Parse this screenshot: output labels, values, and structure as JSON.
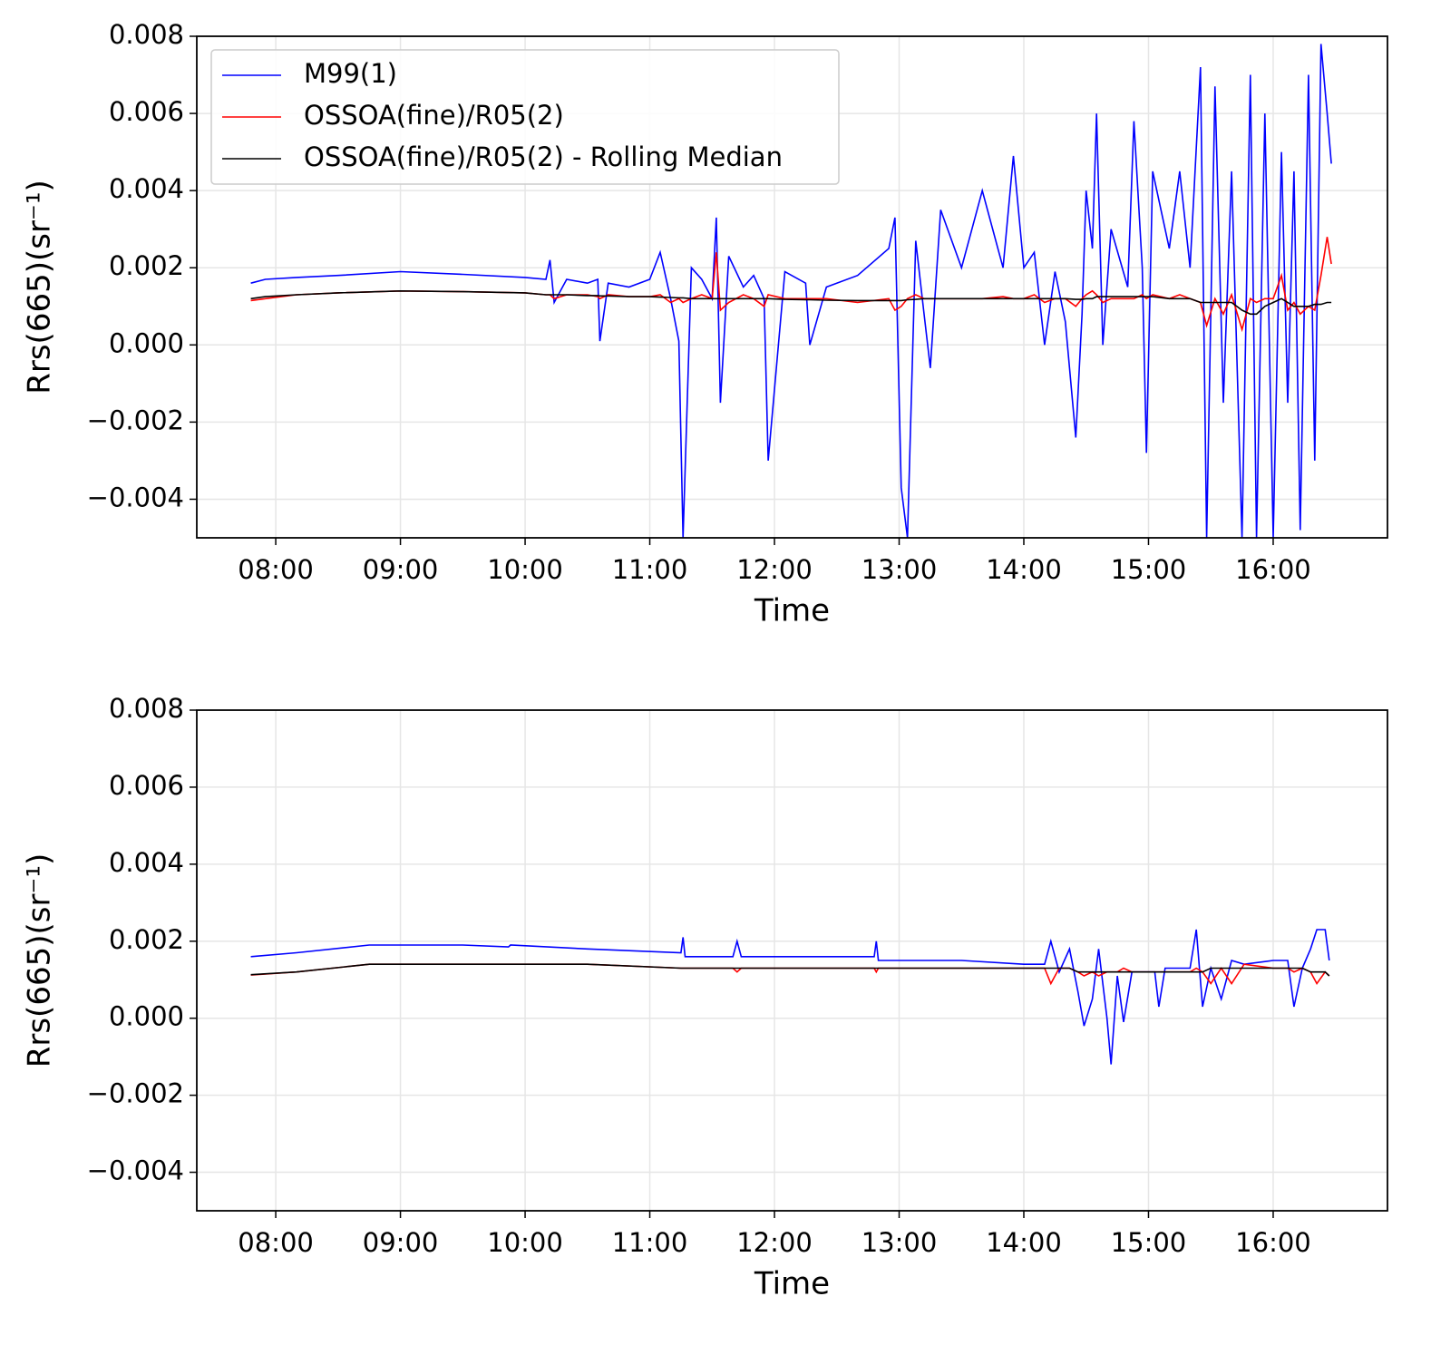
{
  "chart_data": [
    {
      "type": "line",
      "x_label": "Time",
      "y_label": "Rrs(665)(sr⁻¹)",
      "legend": "upper left",
      "grid": true,
      "xlim": [
        "07:22",
        "16:55"
      ],
      "xticks": [
        "08:00",
        "09:00",
        "10:00",
        "11:00",
        "12:00",
        "13:00",
        "14:00",
        "15:00",
        "16:00"
      ],
      "ylim": [
        -0.005,
        0.008
      ],
      "yticks": [
        {
          "value": -0.004,
          "label": "−0.004"
        },
        {
          "value": -0.002,
          "label": "−0.002"
        },
        {
          "value": 0,
          "label": "0.000"
        },
        0.002,
        0.004,
        0.006,
        0.008
      ],
      "x": [
        "07:48",
        "07:55",
        "08:10",
        "08:30",
        "09:00",
        "09:30",
        "10:00",
        "10:10",
        "10:12",
        "10:14",
        "10:20",
        "10:30",
        "10:35",
        "10:36",
        "10:40",
        "10:50",
        "11:00",
        "11:05",
        "11:10",
        "11:14",
        "11:16",
        "11:20",
        "11:25",
        "11:30",
        "11:32",
        "11:34",
        "11:38",
        "11:45",
        "11:50",
        "11:55",
        "11:57",
        "12:05",
        "12:15",
        "12:17",
        "12:25",
        "12:40",
        "12:55",
        "12:58",
        "13:01",
        "13:04",
        "13:08",
        "13:12",
        "13:15",
        "13:20",
        "13:30",
        "13:40",
        "13:50",
        "13:55",
        "14:00",
        "14:05",
        "14:10",
        "14:15",
        "14:20",
        "14:25",
        "14:28",
        "14:30",
        "14:33",
        "14:35",
        "14:38",
        "14:42",
        "14:50",
        "14:53",
        "14:57",
        "14:59",
        "15:02",
        "15:10",
        "15:15",
        "15:20",
        "15:25",
        "15:28",
        "15:32",
        "15:36",
        "15:40",
        "15:45",
        "15:49",
        "15:52",
        "15:56",
        "16:00",
        "16:04",
        "16:07",
        "16:10",
        "16:13",
        "16:17",
        "16:20",
        "16:23",
        "16:26",
        "16:28"
      ],
      "series": [
        {
          "name": "M99(1)",
          "color": "#0000ff",
          "values": [
            0.0016,
            0.0017,
            0.00175,
            0.0018,
            0.0019,
            0.00183,
            0.00175,
            0.0017,
            0.0022,
            0.0011,
            0.0017,
            0.0016,
            0.0017,
            0.0001,
            0.0016,
            0.0015,
            0.0017,
            0.0024,
            0.0012,
            0.0001,
            -0.005,
            0.002,
            0.0017,
            0.0012,
            0.0033,
            -0.0015,
            0.0023,
            0.0015,
            0.0018,
            0.0012,
            -0.003,
            0.0019,
            0.0016,
            0.0,
            0.0015,
            0.0018,
            0.0025,
            0.0033,
            -0.0037,
            -0.005,
            0.0027,
            0.0008,
            -0.0006,
            0.0035,
            0.002,
            0.004,
            0.002,
            0.0049,
            0.002,
            0.0024,
            0.0,
            0.0019,
            0.0006,
            -0.0024,
            0.0008,
            0.004,
            0.0025,
            0.006,
            0.0,
            0.003,
            0.0015,
            0.0058,
            0.002,
            -0.0028,
            0.0045,
            0.0025,
            0.0045,
            0.002,
            0.0072,
            -0.005,
            0.0067,
            -0.0015,
            0.0045,
            -0.005,
            0.007,
            -0.005,
            0.006,
            -0.005,
            0.005,
            -0.0015,
            0.0045,
            -0.0048,
            0.007,
            -0.003,
            0.0078,
            0.006,
            0.0047
          ]
        },
        {
          "name": "OSSOA(fine)/R05(2)",
          "color": "#ff0000",
          "values": [
            0.00115,
            0.0012,
            0.0013,
            0.00135,
            0.0014,
            0.00138,
            0.00135,
            0.0013,
            0.0013,
            0.0012,
            0.0013,
            0.0013,
            0.00125,
            0.0012,
            0.0013,
            0.00125,
            0.00125,
            0.0013,
            0.0011,
            0.0012,
            0.0011,
            0.0012,
            0.0013,
            0.0012,
            0.0024,
            0.0009,
            0.0011,
            0.0013,
            0.0012,
            0.001,
            0.0013,
            0.0012,
            0.0012,
            0.0012,
            0.0012,
            0.0011,
            0.0012,
            0.0009,
            0.001,
            0.0012,
            0.0013,
            0.0012,
            0.0012,
            0.0012,
            0.0012,
            0.0012,
            0.00125,
            0.0012,
            0.0012,
            0.0013,
            0.0011,
            0.0012,
            0.0012,
            0.001,
            0.0012,
            0.0013,
            0.0014,
            0.0013,
            0.0011,
            0.0012,
            0.0012,
            0.0012,
            0.0013,
            0.0012,
            0.0013,
            0.0012,
            0.0013,
            0.0012,
            0.0011,
            0.0005,
            0.0012,
            0.0008,
            0.0013,
            0.0004,
            0.0012,
            0.0011,
            0.0012,
            0.0012,
            0.0018,
            0.0009,
            0.0011,
            0.0008,
            0.001,
            0.0009,
            0.0018,
            0.0028,
            0.0021
          ]
        },
        {
          "name": "OSSOA(fine)/R05(2) - Rolling Median",
          "color": "#000000",
          "values": [
            0.0012,
            0.00125,
            0.0013,
            0.00135,
            0.0014,
            0.00138,
            0.00135,
            0.0013,
            0.0013,
            0.0013,
            0.0013,
            0.00128,
            0.00128,
            0.00127,
            0.00127,
            0.00125,
            0.00125,
            0.00124,
            0.00123,
            0.00122,
            0.00122,
            0.0012,
            0.0012,
            0.0012,
            0.0012,
            0.0012,
            0.0012,
            0.0012,
            0.0012,
            0.0012,
            0.0012,
            0.00118,
            0.00117,
            0.00117,
            0.00116,
            0.00115,
            0.00115,
            0.00115,
            0.00115,
            0.00117,
            0.00118,
            0.0012,
            0.0012,
            0.0012,
            0.0012,
            0.0012,
            0.0012,
            0.0012,
            0.0012,
            0.0012,
            0.0012,
            0.0012,
            0.0012,
            0.00118,
            0.00118,
            0.0012,
            0.0012,
            0.00125,
            0.00125,
            0.00125,
            0.00125,
            0.00125,
            0.00125,
            0.00125,
            0.00125,
            0.0012,
            0.0012,
            0.0012,
            0.0011,
            0.0011,
            0.0011,
            0.0011,
            0.0011,
            0.0009,
            0.0008,
            0.0008,
            0.001,
            0.0011,
            0.0012,
            0.0011,
            0.001,
            0.001,
            0.001,
            0.00105,
            0.00105,
            0.0011,
            0.0011
          ]
        }
      ]
    },
    {
      "type": "line",
      "x_label": "Time",
      "y_label": "Rrs(665)(sr⁻¹)",
      "grid": true,
      "xlim": [
        "07:22",
        "16:55"
      ],
      "xticks": [
        "08:00",
        "09:00",
        "10:00",
        "11:00",
        "12:00",
        "13:00",
        "14:00",
        "15:00",
        "16:00"
      ],
      "ylim": [
        -0.005,
        0.008
      ],
      "yticks": [
        {
          "value": -0.004,
          "label": "−0.004"
        },
        {
          "value": -0.002,
          "label": "−0.002"
        },
        {
          "value": 0,
          "label": "0.000"
        },
        0.002,
        0.004,
        0.006,
        0.008
      ],
      "x": [
        "07:48",
        "08:10",
        "08:45",
        "09:30",
        "09:52",
        "09:53",
        "10:30",
        "11:15",
        "11:16",
        "11:17",
        "11:40",
        "11:42",
        "11:44",
        "12:30",
        "12:48",
        "12:49",
        "12:50",
        "13:30",
        "14:00",
        "14:10",
        "14:13",
        "14:17",
        "14:22",
        "14:26",
        "14:29",
        "14:33",
        "14:36",
        "14:40",
        "14:42",
        "14:45",
        "14:48",
        "14:52",
        "15:03",
        "15:05",
        "15:08",
        "15:20",
        "15:23",
        "15:26",
        "15:30",
        "15:35",
        "15:40",
        "15:46",
        "16:00",
        "16:07",
        "16:10",
        "16:14",
        "16:18",
        "16:21",
        "16:25",
        "16:27"
      ],
      "series": [
        {
          "color": "#0000ff",
          "values": [
            0.0016,
            0.0017,
            0.0019,
            0.0019,
            0.00185,
            0.0019,
            0.0018,
            0.0017,
            0.0021,
            0.0016,
            0.0016,
            0.002,
            0.0016,
            0.0016,
            0.0016,
            0.002,
            0.0015,
            0.0015,
            0.0014,
            0.0014,
            0.002,
            0.0012,
            0.0018,
            0.0007,
            -0.0002,
            0.0005,
            0.0018,
            0.0,
            -0.0012,
            0.0011,
            -0.0001,
            0.0012,
            0.0012,
            0.0003,
            0.0013,
            0.0013,
            0.0023,
            0.0003,
            0.0013,
            0.0005,
            0.0015,
            0.0014,
            0.0015,
            0.0015,
            0.0003,
            0.0013,
            0.0018,
            0.0023,
            0.0023,
            0.0015
          ]
        },
        {
          "color": "#ff0000",
          "values": [
            0.00112,
            0.0012,
            0.0014,
            0.0014,
            0.0014,
            0.0014,
            0.0014,
            0.0013,
            0.0013,
            0.0013,
            0.0013,
            0.0012,
            0.0013,
            0.0013,
            0.0013,
            0.0012,
            0.0013,
            0.0013,
            0.0013,
            0.0013,
            0.0009,
            0.0013,
            0.0013,
            0.0012,
            0.0011,
            0.0012,
            0.0011,
            0.0012,
            0.0012,
            0.0012,
            0.0013,
            0.0012,
            0.0012,
            0.0012,
            0.0012,
            0.0012,
            0.0013,
            0.0012,
            0.0009,
            0.0013,
            0.0009,
            0.0014,
            0.0013,
            0.0013,
            0.0012,
            0.0013,
            0.0012,
            0.0009,
            0.0012,
            0.0011
          ]
        },
        {
          "color": "#000000",
          "values": [
            0.00113,
            0.0012,
            0.0014,
            0.0014,
            0.0014,
            0.0014,
            0.0014,
            0.0013,
            0.0013,
            0.0013,
            0.0013,
            0.0013,
            0.0013,
            0.0013,
            0.0013,
            0.0013,
            0.0013,
            0.0013,
            0.0013,
            0.0013,
            0.0013,
            0.0013,
            0.0013,
            0.0012,
            0.0012,
            0.0012,
            0.0012,
            0.0012,
            0.0012,
            0.0012,
            0.0012,
            0.0012,
            0.0012,
            0.0012,
            0.0012,
            0.0012,
            0.0012,
            0.0012,
            0.0013,
            0.0013,
            0.0013,
            0.0013,
            0.0013,
            0.0013,
            0.0013,
            0.0013,
            0.0012,
            0.0012,
            0.0012,
            0.0011
          ]
        }
      ]
    }
  ]
}
